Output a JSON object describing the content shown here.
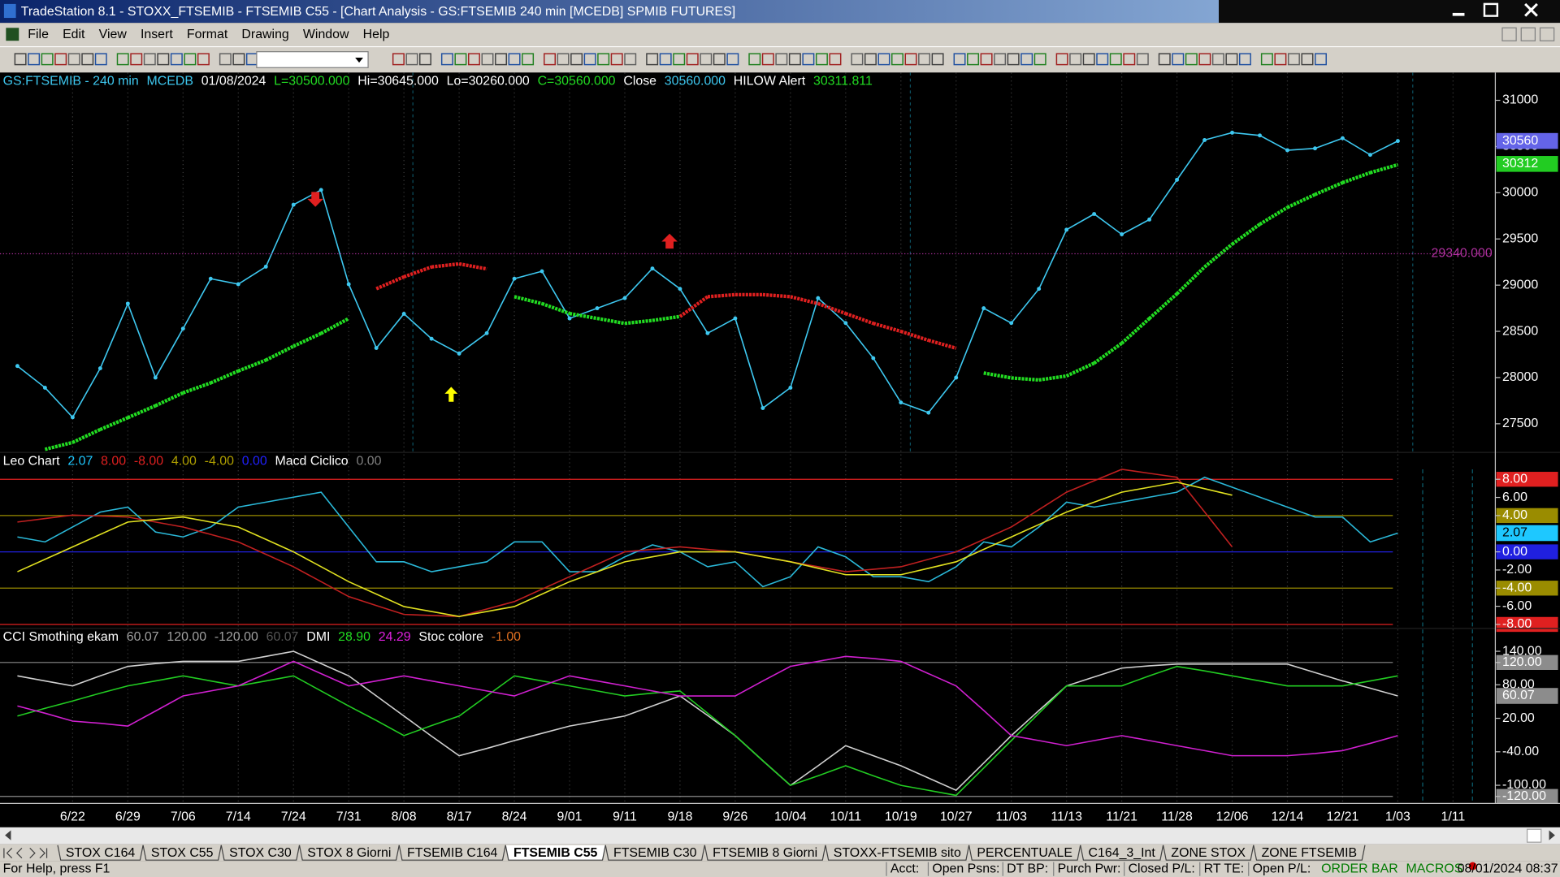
{
  "window": {
    "title": "TradeStation 8.1 - STOXX_FTSEMIB - FTSEMIB C55 - [Chart Analysis - GS:FTSEMIB  240 min  [MCEDB] SPMIB FUTURES]"
  },
  "menu": [
    "File",
    "Edit",
    "View",
    "Insert",
    "Format",
    "Drawing",
    "Window",
    "Help"
  ],
  "chart_data": [
    {
      "type": "line",
      "header": [
        "GS:FTSEMIB - 240 min",
        "MCEDB",
        "01/08/2024",
        "L=30500.000",
        "Hi=30645.000",
        "Lo=30260.000",
        "C=30560.000",
        "Close",
        "30560.000",
        "HILOW Alert",
        "30311.811"
      ],
      "header_colors": [
        "#3ec8f0",
        "#3ec8f0",
        "#ffffff",
        "#22dd22",
        "#ffffff",
        "#ffffff",
        "#22dd22",
        "#ffffff",
        "#3ec8f0",
        "#ffffff",
        "#22dd22"
      ],
      "categories": [
        null,
        null,
        "6/22",
        null,
        "6/29",
        null,
        "7/06",
        null,
        "7/14",
        null,
        "7/24",
        null,
        "7/31",
        null,
        "8/08",
        null,
        "8/17",
        null,
        "8/24",
        null,
        "9/01",
        null,
        "9/11",
        null,
        "9/18",
        null,
        "9/26",
        null,
        "10/04",
        null,
        "10/11",
        null,
        "10/19",
        null,
        "10/27",
        null,
        "11/03",
        null,
        "11/13",
        null,
        "11/21",
        null,
        "11/28",
        null,
        "12/06",
        null,
        "12/14",
        null,
        "12/21",
        null,
        "1/03",
        null,
        "1/11"
      ],
      "series": [
        {
          "color": "#3ec8f0",
          "dots": true,
          "values": [
            28125,
            27890,
            27570,
            28100,
            28800,
            28000,
            28530,
            29070,
            29010,
            29200,
            29870,
            30030,
            29010,
            28320,
            28690,
            28420,
            28260,
            28480,
            29070,
            29150,
            28640,
            28750,
            28860,
            29180,
            28960,
            28480,
            28640,
            27670,
            27890,
            28860,
            28590,
            28210,
            27730,
            27620,
            28000,
            28750,
            28590,
            28960,
            29600,
            29770,
            29550,
            29710,
            30140,
            30570,
            30650,
            30620,
            30460,
            30480,
            30590,
            30410,
            30560,
            null,
            null
          ]
        },
        {
          "style": "thick-dotted",
          "values": [
            null,
            27223,
            27298,
            27438,
            27566,
            27695,
            27835,
            27942,
            28071,
            28189,
            28339,
            28478,
            28639,
            28961,
            29090,
            29197,
            29230,
            29176,
            28875,
            28800,
            28693,
            28640,
            28586,
            28618,
            28661,
            28875,
            28897,
            28897,
            28875,
            28800,
            28693,
            28586,
            28500,
            28403,
            28318,
            28049,
            27996,
            27974,
            28017,
            28156,
            28371,
            28639,
            28907,
            29197,
            29444,
            29659,
            29841,
            29981,
            30109,
            30217,
            30303,
            null,
            null
          ],
          "segment_colors": [
            null,
            null,
            "#22dd22",
            "#22dd22",
            "#22dd22",
            "#22dd22",
            "#22dd22",
            "#22dd22",
            "#22dd22",
            "#22dd22",
            "#22dd22",
            "#22dd22",
            "#22dd22",
            null,
            "#e02020",
            "#e02020",
            "#e02020",
            "#e02020",
            null,
            "#22dd22",
            "#22dd22",
            "#22dd22",
            "#22dd22",
            "#22dd22",
            "#22dd22",
            "#e02020",
            "#e02020",
            "#e02020",
            "#e02020",
            "#e02020",
            "#e02020",
            "#e02020",
            "#e02020",
            "#e02020",
            "#e02020",
            null,
            "#22dd22",
            "#22dd22",
            "#22dd22",
            "#22dd22",
            "#22dd22",
            "#22dd22",
            "#22dd22",
            "#22dd22",
            "#22dd22",
            "#22dd22",
            "#22dd22",
            "#22dd22",
            "#22dd22",
            "#22dd22",
            "#22dd22",
            null,
            null
          ]
        }
      ],
      "ylim": [
        27190,
        31300
      ],
      "yticks": [
        27500,
        28000,
        28500,
        29000,
        29500,
        30000,
        30500,
        31000
      ],
      "markers": [
        {
          "value": 30560,
          "color": "#6464e8"
        },
        {
          "value": 30312,
          "color": "#22cc22"
        },
        {
          "value": 29340,
          "label": "29340.000",
          "color": "#b0309f"
        }
      ]
    },
    {
      "type": "line",
      "header": [
        "Leo Chart",
        "2.07",
        "8.00",
        "-8.00",
        "4.00",
        "-4.00",
        "0.00",
        "Macd Ciclico",
        "0.00"
      ],
      "header_colors": [
        "#ffffff",
        "#1ec8ff",
        "#e02020",
        "#e02020",
        "#b0a000",
        "#b0a000",
        "#2020ff",
        "#ffffff",
        "#808080"
      ],
      "series": [
        {
          "color": "#2ab8d8",
          "values": [
            1.64,
            1.1,
            2.74,
            4.38,
            4.93,
            2.19,
            1.64,
            2.74,
            4.93,
            5.48,
            6.03,
            6.58,
            2.74,
            -1.1,
            -1.1,
            -2.19,
            -1.64,
            -1.1,
            1.1,
            1.1,
            -2.19,
            -2.19,
            -0.55,
            0.77,
            0,
            -1.64,
            -1.1,
            -3.84,
            -2.74,
            0.55,
            -0.55,
            -2.74,
            -2.74,
            -3.29,
            -1.64,
            1.1,
            0.55,
            2.74,
            5.48,
            4.93,
            5.48,
            6.03,
            6.58,
            8.22,
            7.12,
            6.03,
            4.93,
            3.84,
            3.84,
            1.1,
            2.07,
            null,
            null
          ]
        },
        {
          "color": "#c02020",
          "values": [
            3.29,
            3.67,
            4.05,
            3.95,
            3.84,
            3.29,
            2.74,
            1.92,
            1.1,
            -0.27,
            -1.64,
            -3.29,
            -4.93,
            -5.92,
            -6.9,
            -7.01,
            -7.12,
            -6.3,
            -5.48,
            -4.11,
            -2.74,
            -1.37,
            0,
            0.27,
            0.55,
            0.27,
            0,
            -0.55,
            -1.1,
            -1.64,
            -2.19,
            -1.92,
            -1.64,
            -0.82,
            0,
            1.37,
            2.74,
            4.66,
            6.58,
            7.84,
            9.1,
            8.66,
            8.22,
            4.39,
            0.55,
            null,
            null,
            null,
            null,
            null,
            null,
            null,
            null
          ]
        },
        {
          "color": "#e0e020",
          "values": [
            -2.19,
            -0.82,
            0.55,
            1.92,
            3.29,
            3.56,
            3.84,
            3.29,
            2.74,
            1.37,
            0,
            -1.64,
            -3.29,
            -4.66,
            -6.03,
            -6.58,
            -7.12,
            -6.58,
            -6.03,
            -4.66,
            -3.29,
            -2.19,
            -1.1,
            -0.55,
            0,
            0,
            0,
            -0.55,
            -1.1,
            -1.81,
            -2.52,
            -2.52,
            -2.52,
            -1.81,
            -1.1,
            0.27,
            1.64,
            3.01,
            4.38,
            5.48,
            6.58,
            7.12,
            7.67,
            6.96,
            6.25,
            null,
            null,
            null,
            null,
            null,
            null,
            null,
            null
          ]
        }
      ],
      "ylim": [
        -8.44,
        10.96
      ],
      "yticks": [
        {
          "value": 8,
          "label": "8.00"
        },
        {
          "value": 6,
          "label": "6.00"
        },
        {
          "value": 4,
          "label": "4.00"
        },
        {
          "value": 0,
          "label": "0.00"
        },
        {
          "value": -2,
          "label": "-2.00"
        },
        {
          "value": -4,
          "label": "-4.00"
        },
        {
          "value": -6,
          "label": "-6.00"
        },
        {
          "value": -8,
          "label": "-8.00"
        }
      ],
      "tick_colors": [
        "#e02020",
        null,
        "#9a8c00",
        "#2020e0",
        null,
        "#9a8c00",
        null,
        "#e02020"
      ],
      "markers": [
        {
          "value": 2.07,
          "color": "#1ec8ff"
        }
      ]
    },
    {
      "type": "line",
      "header": [
        "CCI Smothing ekam",
        "60.07",
        "120.00",
        "-120.00",
        "60.07",
        "DMI",
        "28.90",
        "24.29",
        "Stoc colore",
        "-1.00"
      ],
      "header_colors": [
        "#ffffff",
        "#a0a0a0",
        "#a0a0a0",
        "#a0a0a0",
        "#555555",
        "#ffffff",
        "#22dd22",
        "#e020e0",
        "#ffffff",
        "#e07020"
      ],
      "series": [
        {
          "color": "#d0d0d0",
          "values": [
            96,
            87,
            78,
            96,
            113,
            118,
            122,
            122,
            122,
            131,
            140,
            118,
            96,
            60,
            24,
            -12,
            -47,
            -34,
            -20,
            -7,
            6,
            15,
            24,
            42,
            60,
            25,
            -11,
            -56,
            -100,
            -65,
            -29,
            -47,
            -65,
            -87,
            -109,
            -60,
            -11,
            34,
            78,
            94,
            110,
            114,
            117,
            117,
            117,
            117,
            117,
            102,
            87,
            74,
            60.07,
            null,
            null
          ]
        },
        {
          "color": "#22cc22",
          "values": [
            24,
            38,
            51,
            65,
            78,
            87,
            96,
            87,
            78,
            87,
            96,
            69,
            42,
            16,
            -11,
            7,
            24,
            60,
            96,
            87,
            78,
            69,
            60,
            65,
            69,
            29,
            -11,
            -56,
            -100,
            -83,
            -65,
            -83,
            -100,
            -109,
            -118,
            -69,
            -20,
            29,
            78,
            78,
            78,
            96,
            113,
            105,
            96,
            87,
            78,
            78,
            78,
            87,
            96,
            null,
            null
          ]
        },
        {
          "color": "#d020d0",
          "values": [
            42,
            29,
            15,
            11,
            6,
            33,
            60,
            69,
            78,
            100,
            122,
            100,
            78,
            87,
            96,
            87,
            78,
            69,
            60,
            78,
            96,
            87,
            78,
            69,
            60,
            60,
            60,
            87,
            113,
            122,
            131,
            127,
            122,
            100,
            78,
            34,
            -11,
            -20,
            -29,
            -20,
            -11,
            -20,
            -29,
            -38,
            -47,
            -47,
            -47,
            -43,
            -38,
            -25,
            -11,
            null,
            null
          ]
        }
      ],
      "ylim": [
        -132.5,
        181
      ],
      "yticks": [
        {
          "value": 140,
          "label": "140.00"
        },
        {
          "value": 120,
          "label": "120.00"
        },
        {
          "value": 80,
          "label": "80.00"
        },
        {
          "value": 20,
          "label": "20.00"
        },
        {
          "value": -40,
          "label": "-40.00"
        },
        {
          "value": -100,
          "label": "-100.00"
        },
        {
          "value": -120,
          "label": "-120.00"
        }
      ],
      "tick_colors": [
        null,
        "#8c8c8c",
        null,
        null,
        null,
        null,
        "#8c8c8c"
      ],
      "markers": [
        {
          "value": 60.07,
          "color": "#8c8c8c"
        }
      ]
    }
  ],
  "tabs": [
    "STOX C164",
    "STOX C55",
    "STOX  C30",
    "STOX  8 Giorni",
    "FTSEMIB C164",
    "FTSEMIB C55",
    "FTSEMIB C30",
    "FTSEMIB  8 Giorni",
    "STOXX-FTSEMIB sito",
    "PERCENTUALE",
    "C164_3_Int",
    "ZONE STOX",
    "ZONE FTSEMIB"
  ],
  "active_tab": 5,
  "status": {
    "help": "For Help, press F1",
    "fields": [
      "Acct:",
      "Open Psns:",
      "DT BP:",
      "Purch Pwr:",
      "Closed P/L:",
      "RT TE:",
      "Open P/L:"
    ],
    "buttons": [
      "ORDER BAR",
      "MACROS"
    ],
    "clock": "08/01/2024 08:37"
  }
}
